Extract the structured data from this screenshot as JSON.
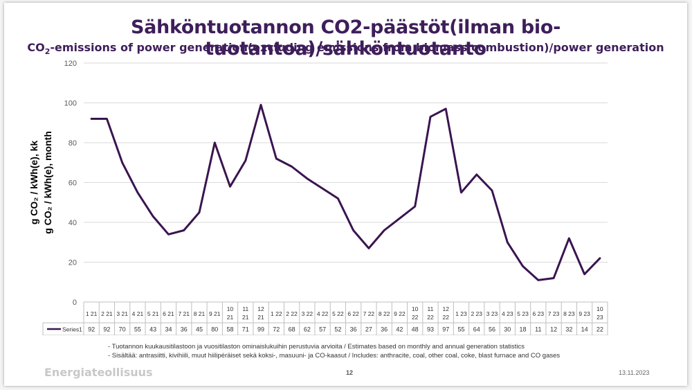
{
  "slide": {
    "title": "Sähköntuotannon CO2-päästöt(ilman bio-tuotantoa)/sähköntuotanto",
    "subtitle_main": "CO",
    "subtitle_sub": "2",
    "subtitle_rest": "-emissions of power generation(excluding emissions from biomass combustion)/power generation",
    "footnote_1": "- Tuotannon kuukausitilastoon ja vuositilaston ominaislukuihin perustuvia arvioita / Estimates based on monthly and annual generation statistics",
    "footnote_2": "- Sisältää: antrasiitti, kivihiili, muut hiilipéräiset sekä koksi-, masuuni- ja CO-kaasut / Includes: anthracite, coal, other coal, coke, blast furnace and CO gases",
    "brand": "Energiateollisuus",
    "page_number": "12",
    "date": "13.11.2023"
  },
  "chart_data": {
    "type": "line",
    "ylabel_1": "g CO₂ / kWh(e), kk",
    "ylabel_2": "g CO₂ / kWh(e), month",
    "ylim": [
      0,
      120
    ],
    "yticks": [
      0,
      20,
      40,
      60,
      80,
      100,
      120
    ],
    "grid": true,
    "categories": [
      "1 21",
      "2 21",
      "3 21",
      "4 21",
      "5 21",
      "6 21",
      "7 21",
      "8 21",
      "9 21",
      "10 21",
      "11 21",
      "12 21",
      "1 22",
      "2 22",
      "3 22",
      "4 22",
      "5 22",
      "6 22",
      "7 22",
      "8 22",
      "9 22",
      "10 22",
      "11 22",
      "12 22",
      "1 23",
      "2 23",
      "3 23",
      "4 23",
      "5 23",
      "6 23",
      "7 23",
      "8 23",
      "9 23",
      "10 23"
    ],
    "series": [
      {
        "name": "Series1",
        "color": "#3a1450",
        "values": [
          92,
          92,
          70,
          55,
          43,
          34,
          36,
          45,
          80,
          58,
          71,
          99,
          72,
          68,
          62,
          57,
          52,
          36,
          27,
          36,
          42,
          48,
          93,
          97,
          55,
          64,
          56,
          30,
          18,
          11,
          12,
          32,
          14,
          22
        ]
      }
    ]
  }
}
